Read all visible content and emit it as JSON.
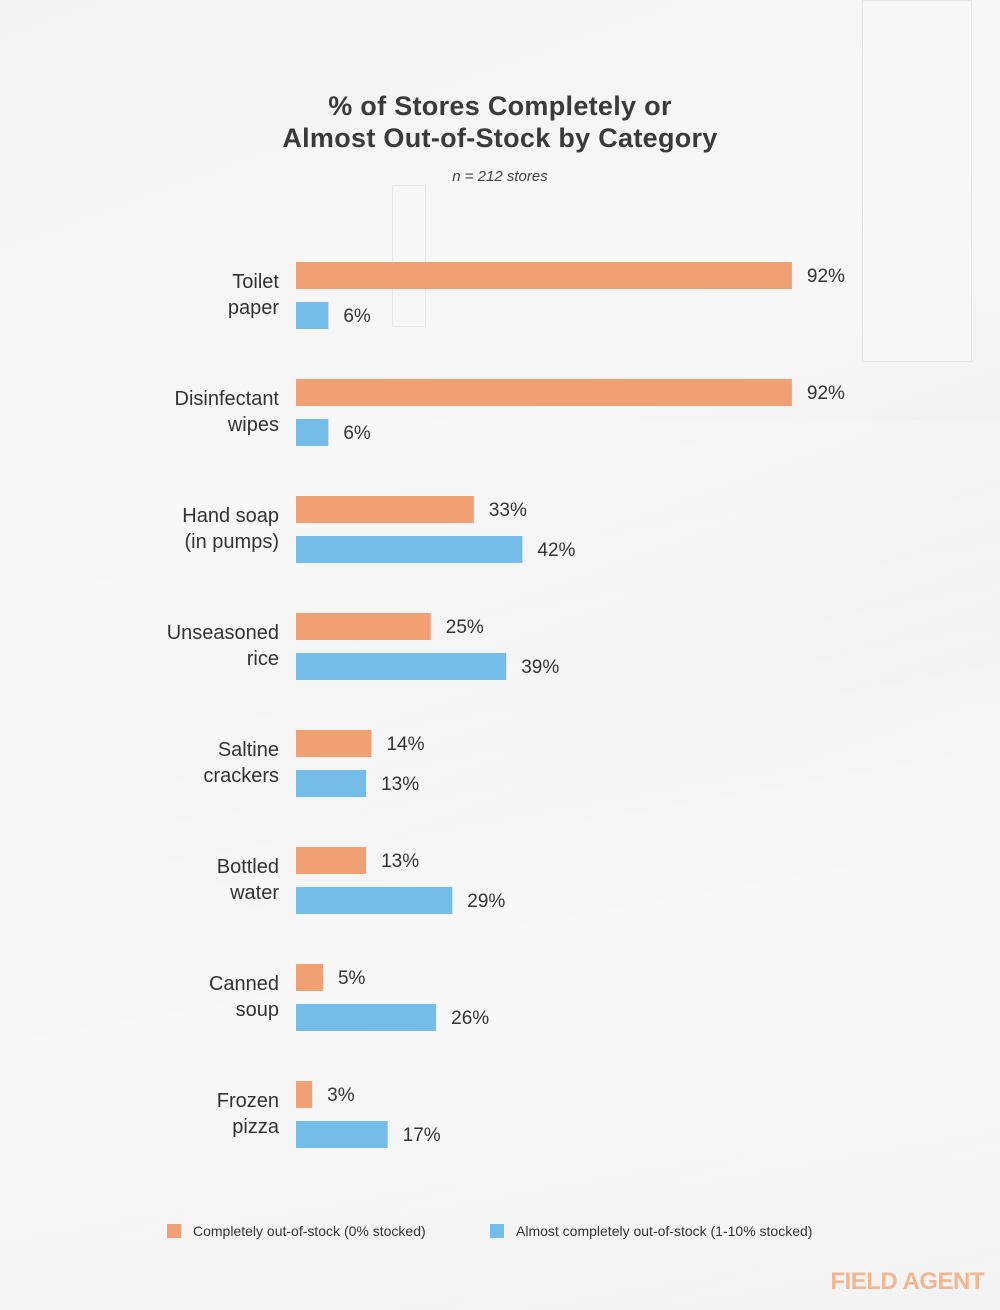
{
  "chart_data": {
    "type": "bar",
    "orientation": "horizontal",
    "title": "% of Stores Completely or Almost Out-of-Stock by Category",
    "title_lines": [
      "% of Stores Completely or",
      "Almost Out-of-Stock by Category"
    ],
    "subtitle": "n = 212 stores",
    "categories": [
      [
        "Toilet",
        "paper"
      ],
      [
        "Disinfectant",
        "wipes"
      ],
      [
        "Hand soap",
        "(in pumps)"
      ],
      [
        "Unseasoned",
        "rice"
      ],
      [
        "Saltine",
        "crackers"
      ],
      [
        "Bottled",
        "water"
      ],
      [
        "Canned",
        "soup"
      ],
      [
        "Frozen",
        "pizza"
      ]
    ],
    "series": [
      {
        "name": "Completely out-of-stock (0% stocked)",
        "color": "#f0a073",
        "values": [
          92,
          92,
          33,
          25,
          14,
          13,
          5,
          3
        ]
      },
      {
        "name": "Almost completely out-of-stock (1-10% stocked)",
        "color": "#74bde9",
        "values": [
          6,
          6,
          42,
          39,
          13,
          29,
          26,
          17
        ]
      }
    ],
    "value_suffix": "%",
    "xlim": [
      0,
      100
    ],
    "grid": false,
    "legend_position": "bottom"
  },
  "brand": "FIELD AGENT"
}
